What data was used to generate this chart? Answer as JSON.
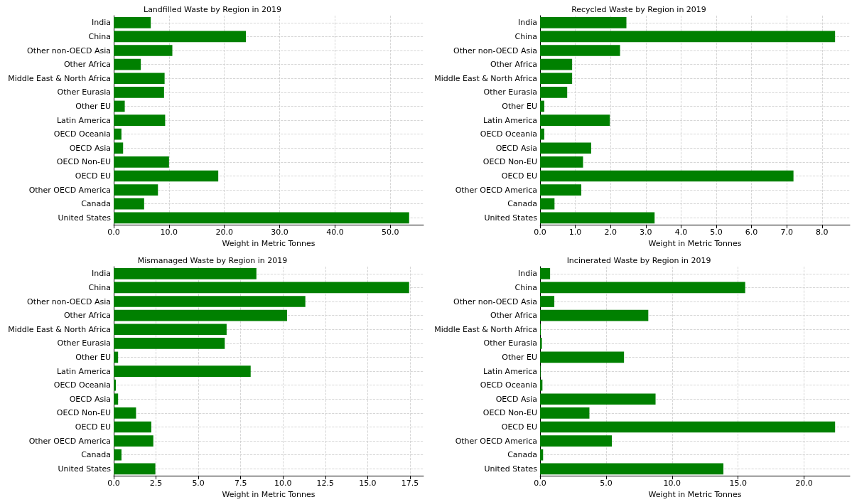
{
  "chart_data": [
    {
      "type": "bar",
      "orientation": "horizontal",
      "title": "Landfilled Waste by Region in 2019",
      "xlabel": "Weight in Metric Tonnes",
      "categories": [
        "India",
        "China",
        "Other non-OECD Asia",
        "Other Africa",
        "Middle East & North Africa",
        "Other Eurasia",
        "Other EU",
        "Latin America",
        "OECD Oceania",
        "OECD Asia",
        "OECD Non-EU",
        "OECD EU",
        "Other OECD America",
        "Canada",
        "United States"
      ],
      "values": [
        6.7,
        23.9,
        10.6,
        4.9,
        9.2,
        9.1,
        2.0,
        9.3,
        1.4,
        1.7,
        10.0,
        18.9,
        8.0,
        5.5,
        53.4
      ],
      "color": "#008000",
      "xlim": [
        0,
        56
      ],
      "xticks": [
        {
          "value": 0,
          "label": "0.0"
        },
        {
          "value": 10,
          "label": "10.0"
        },
        {
          "value": 20,
          "label": "20.0"
        },
        {
          "value": 30,
          "label": "30.0"
        },
        {
          "value": 40,
          "label": "40.0"
        },
        {
          "value": 50,
          "label": "50.0"
        }
      ],
      "grid": true
    },
    {
      "type": "bar",
      "orientation": "horizontal",
      "title": "Recycled Waste by Region in 2019",
      "xlabel": "Weight in Metric Tonnes",
      "categories": [
        "India",
        "China",
        "Other non-OECD Asia",
        "Other Africa",
        "Middle East & North Africa",
        "Other Eurasia",
        "Other EU",
        "Latin America",
        "OECD Oceania",
        "OECD Asia",
        "OECD Non-EU",
        "OECD EU",
        "Other OECD America",
        "Canada",
        "United States"
      ],
      "values": [
        2.45,
        8.37,
        2.27,
        0.91,
        0.91,
        0.77,
        0.12,
        1.98,
        0.12,
        1.45,
        1.22,
        7.19,
        1.17,
        0.41,
        3.25
      ],
      "color": "#008000",
      "xlim": [
        0,
        8.79
      ],
      "xticks": [
        {
          "value": 0,
          "label": "0.0"
        },
        {
          "value": 1,
          "label": "1.0"
        },
        {
          "value": 2,
          "label": "2.0"
        },
        {
          "value": 3,
          "label": "3.0"
        },
        {
          "value": 4,
          "label": "4.0"
        },
        {
          "value": 5,
          "label": "5.0"
        },
        {
          "value": 6,
          "label": "6.0"
        },
        {
          "value": 7,
          "label": "7.0"
        },
        {
          "value": 8,
          "label": "8.0"
        }
      ],
      "grid": true
    },
    {
      "type": "bar",
      "orientation": "horizontal",
      "title": "Mismanaged Waste by Region in 2019",
      "xlabel": "Weight in Metric Tonnes",
      "categories": [
        "India",
        "China",
        "Other non-OECD Asia",
        "Other Africa",
        "Middle East & North Africa",
        "Other Eurasia",
        "Other EU",
        "Latin America",
        "OECD Oceania",
        "OECD Asia",
        "OECD Non-EU",
        "OECD EU",
        "Other OECD America",
        "Canada",
        "United States"
      ],
      "values": [
        8.43,
        17.45,
        11.32,
        10.24,
        6.67,
        6.56,
        0.26,
        8.09,
        0.13,
        0.26,
        1.32,
        2.22,
        2.34,
        0.46,
        2.46
      ],
      "color": "#008000",
      "xlim": [
        0,
        18.3
      ],
      "xticks": [
        {
          "value": 0,
          "label": "0.0"
        },
        2.5,
        {
          "value": 5,
          "label": "5.0"
        },
        7.5,
        {
          "value": 10,
          "label": "10.0"
        },
        12.5,
        {
          "value": 15,
          "label": "15.0"
        },
        17.5
      ],
      "grid": true
    },
    {
      "type": "bar",
      "orientation": "horizontal",
      "title": "Incinerated Waste by Region in 2019",
      "xlabel": "Weight in Metric Tonnes",
      "categories": [
        "India",
        "China",
        "Other non-OECD Asia",
        "Other Africa",
        "Middle East & North Africa",
        "Other Eurasia",
        "Other EU",
        "Latin America",
        "OECD Oceania",
        "OECD Asia",
        "OECD Non-EU",
        "OECD EU",
        "Other OECD America",
        "Canada",
        "United States"
      ],
      "values": [
        0.76,
        15.54,
        1.08,
        8.2,
        0.06,
        0.14,
        6.36,
        0.04,
        0.18,
        8.75,
        3.74,
        22.35,
        5.44,
        0.23,
        13.89
      ],
      "color": "#008000",
      "xlim": [
        0,
        23.47
      ],
      "xticks": [
        {
          "value": 0,
          "label": "0.0"
        },
        {
          "value": 5,
          "label": "5.0"
        },
        {
          "value": 10,
          "label": "10.0"
        },
        {
          "value": 15,
          "label": "15.0"
        },
        {
          "value": 20,
          "label": "20.0"
        }
      ],
      "grid": true
    }
  ]
}
